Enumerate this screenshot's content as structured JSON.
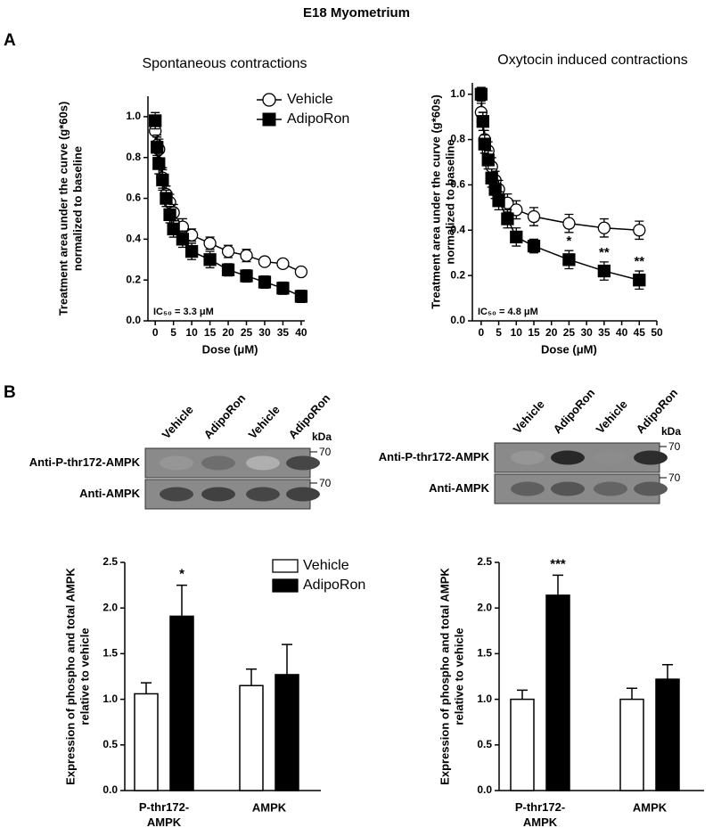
{
  "title": "E18 Myometrium",
  "panel_labels": [
    "A",
    "B"
  ],
  "blots": [
    {
      "lanes": [
        "Vehicle",
        "AdipoRon",
        "Vehicle",
        "AdipoRon"
      ],
      "unit": "kDa",
      "rows": [
        {
          "label": "Anti-P-thr172-AMPK",
          "marker": "70"
        },
        {
          "label": "Anti-AMPK",
          "marker": "70"
        }
      ]
    },
    {
      "lanes": [
        "Vehicle",
        "AdipoRon",
        "Vehicle",
        "AdipoRon"
      ],
      "unit": "kDa",
      "rows": [
        {
          "label": "Anti-P-thr172-AMPK",
          "marker": "70"
        },
        {
          "label": "Anti-AMPK",
          "marker": "70"
        }
      ]
    }
  ],
  "chart_data": [
    {
      "type": "line",
      "title": "Spontaneous contractions",
      "ylabel": [
        "Treatment area under the curve (g*60s)",
        "normalized to baseline"
      ],
      "xlabel": "Dose (μM)",
      "annotation": "IC₅₀ = 3.3 μM",
      "legend": "upper right",
      "x": [
        0,
        0.5,
        1,
        2,
        3,
        4,
        5,
        7.5,
        10,
        15,
        20,
        25,
        30,
        35,
        40
      ],
      "series": [
        {
          "name": "Vehicle",
          "color": "#ffffff",
          "marker": "circle",
          "values": [
            0.93,
            0.86,
            0.84,
            0.7,
            0.62,
            0.58,
            0.53,
            0.46,
            0.42,
            0.38,
            0.34,
            0.32,
            0.29,
            0.28,
            0.24
          ],
          "errors": [
            0.05,
            0.05,
            0.05,
            0.05,
            0.04,
            0.04,
            0.04,
            0.04,
            0.03,
            0.03,
            0.03,
            0.03,
            0.02,
            0.02,
            0.02
          ]
        },
        {
          "name": "AdipoRon",
          "color": "#000000",
          "marker": "square",
          "values": [
            0.98,
            0.85,
            0.77,
            0.69,
            0.6,
            0.52,
            0.45,
            0.4,
            0.34,
            0.3,
            0.25,
            0.22,
            0.19,
            0.16,
            0.12
          ],
          "errors": [
            0.04,
            0.05,
            0.05,
            0.05,
            0.04,
            0.04,
            0.04,
            0.04,
            0.04,
            0.04,
            0.03,
            0.03,
            0.03,
            0.03,
            0.03
          ]
        }
      ],
      "xlim": [
        -2,
        41
      ],
      "xticks": [
        0,
        5,
        10,
        15,
        20,
        25,
        30,
        35,
        40
      ],
      "ylim": [
        0,
        1.1
      ],
      "yticks": [
        {
          "value": 0,
          "label": "0.0"
        },
        0.2,
        0.4,
        0.6,
        0.8,
        {
          "value": 1,
          "label": "1.0"
        }
      ]
    },
    {
      "type": "line",
      "title": "Oxytocin induced contractions",
      "ylabel": [
        "Treatment area under the curve (g*60s)",
        "normalized to baseline"
      ],
      "xlabel": "Dose (μM)",
      "annotation": "IC₅₀ = 4.8 μM",
      "x": [
        0,
        0.5,
        1,
        2,
        3,
        4,
        5,
        7.5,
        10,
        15,
        25,
        35,
        45
      ],
      "series": [
        {
          "name": "Vehicle",
          "color": "#ffffff",
          "marker": "circle",
          "values": [
            0.92,
            0.88,
            0.8,
            0.75,
            0.68,
            0.62,
            0.58,
            0.52,
            0.49,
            0.46,
            0.43,
            0.41,
            0.4
          ],
          "errors": [
            0.04,
            0.04,
            0.04,
            0.04,
            0.04,
            0.04,
            0.04,
            0.04,
            0.04,
            0.04,
            0.04,
            0.04,
            0.04
          ]
        },
        {
          "name": "AdipoRon",
          "color": "#000000",
          "marker": "square",
          "values": [
            1.0,
            0.88,
            0.78,
            0.71,
            0.63,
            0.58,
            0.53,
            0.45,
            0.37,
            0.33,
            0.27,
            0.22,
            0.18
          ],
          "errors": [
            0.03,
            0.04,
            0.04,
            0.04,
            0.04,
            0.04,
            0.04,
            0.04,
            0.04,
            0.03,
            0.04,
            0.04,
            0.04
          ],
          "significance": [
            null,
            null,
            null,
            null,
            null,
            null,
            null,
            null,
            null,
            null,
            "*",
            "**",
            "**"
          ]
        }
      ],
      "xlim": [
        -2.5,
        50
      ],
      "xticks": [
        0,
        5,
        10,
        15,
        20,
        25,
        30,
        35,
        40,
        45,
        50
      ],
      "ylim": [
        0,
        1.05
      ],
      "yticks": [
        {
          "value": 0,
          "label": "0.0"
        },
        0.2,
        0.4,
        0.6,
        0.8,
        {
          "value": 1,
          "label": "1.0"
        }
      ]
    },
    {
      "type": "bar",
      "ylabel": [
        "Expression of phospho and total AMPK",
        "relative to vehicle"
      ],
      "legend": "upper right",
      "categories": [
        "P-thr172-AMPK",
        "AMPK"
      ],
      "series": [
        {
          "name": "Vehicle",
          "color": "#ffffff",
          "values": [
            1.06,
            1.15
          ],
          "errors": [
            0.12,
            0.18
          ]
        },
        {
          "name": "AdipoRon",
          "color": "#000000",
          "values": [
            1.91,
            1.27
          ],
          "errors": [
            0.34,
            0.33
          ],
          "significance": [
            "*",
            null
          ]
        }
      ],
      "ylim": [
        0,
        2.5
      ],
      "yticks": [
        {
          "value": 0,
          "label": "0.0"
        },
        0.5,
        {
          "value": 1,
          "label": "1.0"
        },
        1.5,
        {
          "value": 2,
          "label": "2.0"
        },
        2.5
      ]
    },
    {
      "type": "bar",
      "ylabel": [
        "Expression of phospho and total AMPK",
        "relative to vehicle"
      ],
      "categories": [
        "P-thr172-AMPK",
        "AMPK"
      ],
      "series": [
        {
          "name": "Vehicle",
          "color": "#ffffff",
          "values": [
            1.0,
            1.0
          ],
          "errors": [
            0.1,
            0.12
          ]
        },
        {
          "name": "AdipoRon",
          "color": "#000000",
          "values": [
            2.14,
            1.22
          ],
          "errors": [
            0.22,
            0.16
          ],
          "significance": [
            "***",
            null
          ]
        }
      ],
      "ylim": [
        0,
        2.5
      ],
      "yticks": [
        {
          "value": 0,
          "label": "0.0"
        },
        0.5,
        {
          "value": 1,
          "label": "1.0"
        },
        1.5,
        {
          "value": 2,
          "label": "2.0"
        },
        2.5
      ]
    }
  ]
}
